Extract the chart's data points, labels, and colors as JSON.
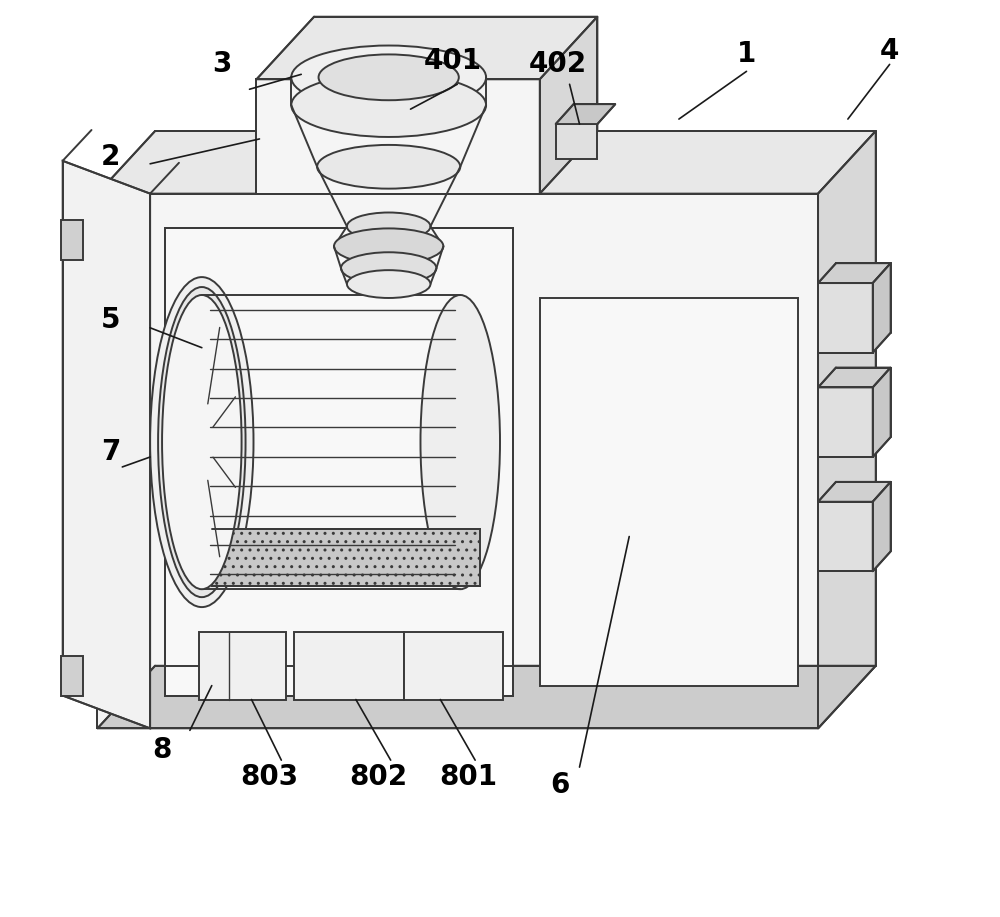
{
  "bg_color": "#ffffff",
  "lc": "#3a3a3a",
  "lc_dark": "#222222",
  "lw": 1.4,
  "lw_thin": 1.0,
  "fill_top": "#e8e8e8",
  "fill_right": "#d8d8d8",
  "fill_front": "#f5f5f5",
  "fill_white": "#fafafa"
}
